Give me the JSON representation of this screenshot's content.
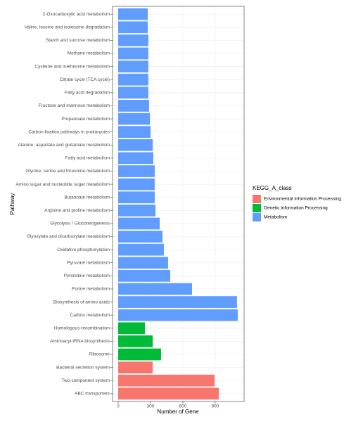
{
  "chart_data": {
    "type": "bar",
    "orientation": "horizontal",
    "x_label": "Number of Gene",
    "y_label": "Pathway",
    "categories": [
      "2-Oxocarboxylic acid metabolism",
      "Valine, leucine and isoleucine degradation",
      "Starch and sucrose metabolism",
      "Methane metabolism",
      "Cysteine and methionine metabolism",
      "Citrate cycle (TCA cycle)",
      "Fatty acid degradation",
      "Fructose and mannose metabolism",
      "Propanoate metabolism",
      "Carbon fixation pathways in prokaryotes",
      "Alanine, aspartate and glutamate metabolism",
      "Fatty acid metabolism",
      "Glycine, serine and threonine metabolism",
      "Amino sugar and nucleotide sugar metabolism",
      "Butanoate metabolism",
      "Arginine and proline metabolism",
      "Glycolysis / Gluconeogenesis",
      "Glyoxylate and dicarboxylate metabolism",
      "Oxidative phosphorylation",
      "Pyruvate metabolism",
      "Pyrimidine metabolism",
      "Purine metabolism",
      "Biosynthesis of amino acids",
      "Carbon metabolism",
      "Homologous recombination",
      "Aminoacyl-tRNA biosynthesis",
      "Ribosome",
      "Bacterial secretion system",
      "Two-component system",
      "ABC transporters"
    ],
    "values": [
      274,
      274,
      280,
      280,
      280,
      280,
      280,
      287,
      294,
      300,
      320,
      326,
      339,
      339,
      339,
      346,
      385,
      411,
      424,
      463,
      483,
      685,
      1102,
      1109,
      248,
      320,
      398,
      320,
      894,
      933
    ],
    "groups": [
      "Metabolism",
      "Metabolism",
      "Metabolism",
      "Metabolism",
      "Metabolism",
      "Metabolism",
      "Metabolism",
      "Metabolism",
      "Metabolism",
      "Metabolism",
      "Metabolism",
      "Metabolism",
      "Metabolism",
      "Metabolism",
      "Metabolism",
      "Metabolism",
      "Metabolism",
      "Metabolism",
      "Metabolism",
      "Metabolism",
      "Metabolism",
      "Metabolism",
      "Metabolism",
      "Metabolism",
      "Genetic Information Processing",
      "Genetic Information Processing",
      "Genetic Information Processing",
      "Environmental Information Processing",
      "Environmental Information Processing",
      "Environmental Information Processing"
    ],
    "legend": {
      "title": "KEGG_A_class",
      "items": [
        {
          "name": "Environmental Information Processing",
          "color": "#F8766D"
        },
        {
          "name": "Genetic Information Processing",
          "color": "#00BA38"
        },
        {
          "name": "Metabolism",
          "color": "#619CFF"
        }
      ]
    },
    "xlim": [
      -52,
      1168
    ],
    "xticks": [
      0,
      300,
      600,
      900
    ],
    "grid": true
  }
}
